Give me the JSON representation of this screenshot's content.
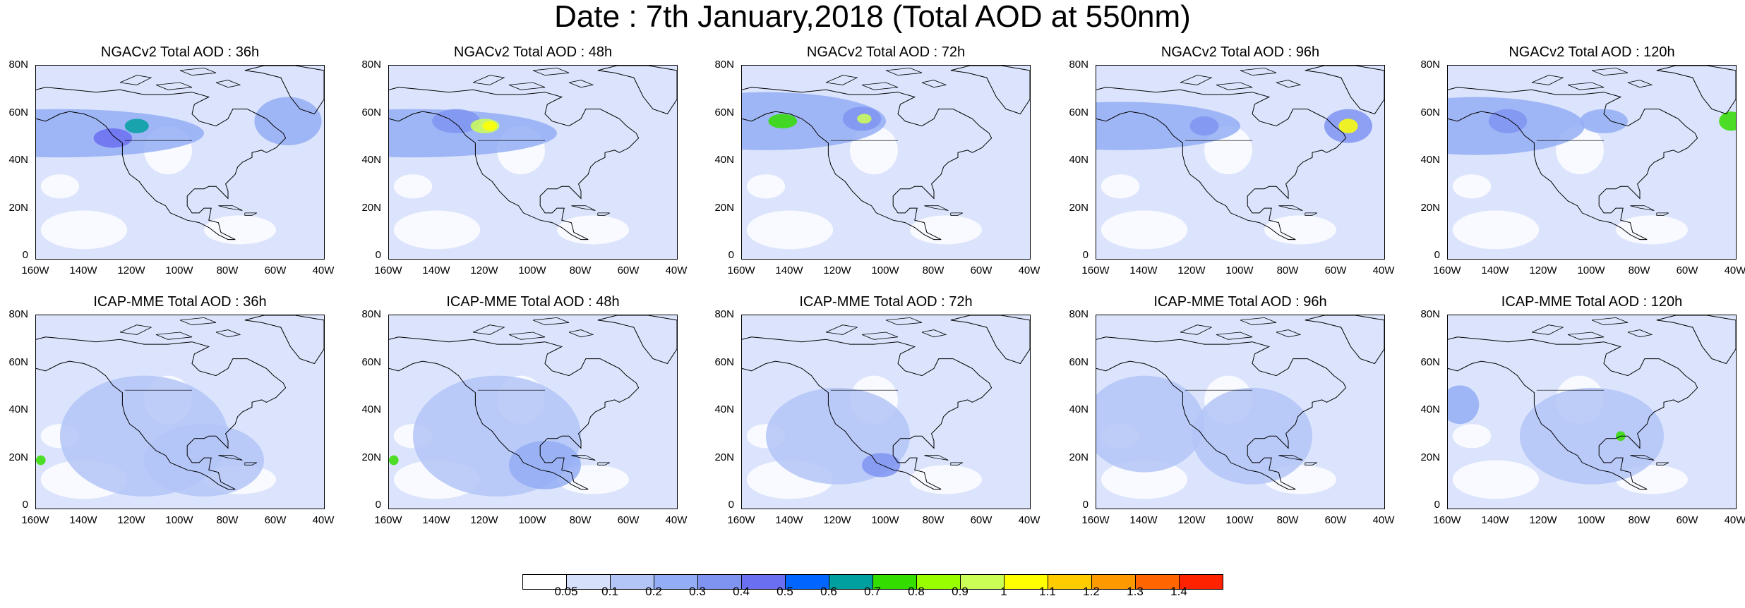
{
  "title": "Date : 7th January,2018 (Total AOD at 550nm)",
  "lat_labels": [
    "80N",
    "60N",
    "40N",
    "20N",
    "0"
  ],
  "lon_labels": [
    "160W",
    "140W",
    "120W",
    "100W",
    "80W",
    "60W",
    "40W"
  ],
  "rows": [
    {
      "panels": [
        {
          "title": "NGACv2 Total AOD : 36h"
        },
        {
          "title": "NGACv2 Total AOD : 48h"
        },
        {
          "title": "NGACv2 Total AOD : 72h"
        },
        {
          "title": "NGACv2 Total AOD : 96h"
        },
        {
          "title": "NGACv2 Total AOD : 120h"
        }
      ]
    },
    {
      "panels": [
        {
          "title": "ICAP-MME Total AOD : 36h"
        },
        {
          "title": "ICAP-MME Total AOD : 48h"
        },
        {
          "title": "ICAP-MME Total AOD : 72h"
        },
        {
          "title": "ICAP-MME Total AOD : 96h"
        },
        {
          "title": "ICAP-MME Total AOD : 120h"
        }
      ]
    }
  ],
  "colorbar": {
    "labels": [
      "0.05",
      "0.1",
      "0.2",
      "0.3",
      "0.4",
      "0.5",
      "0.6",
      "0.7",
      "0.8",
      "0.9",
      "1",
      "1.1",
      "1.2",
      "1.3",
      "1.4"
    ],
    "colors": [
      "#ffffff",
      "#d6e0fb",
      "#b3c4f7",
      "#94aef5",
      "#7f94f1",
      "#6a6ef0",
      "#0066ff",
      "#00a0a0",
      "#33dd00",
      "#99ff00",
      "#ccff55",
      "#ffff00",
      "#ffcc00",
      "#ff9900",
      "#ff6600",
      "#ff2200"
    ]
  }
}
